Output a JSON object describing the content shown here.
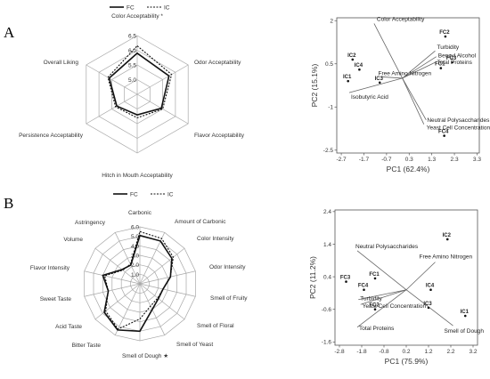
{
  "panels": [
    {
      "letter": "A",
      "radar": {
        "type": "radar",
        "legend": [
          "FC",
          "IC"
        ],
        "axes": [
          "Color Acceptability *",
          "Odor Acceptability",
          "Flavor Acceptability",
          "Hitch in Mouth Acceptability",
          "Persistence Acceptability",
          "Overall Liking"
        ],
        "rings": [
          5.0,
          5.5,
          6.0,
          6.5
        ],
        "rmin": 4.5,
        "rmax": 6.5,
        "series": [
          {
            "name": "FC",
            "values": [
              5.9,
              5.75,
              5.45,
              5.2,
              5.3,
              5.6
            ]
          },
          {
            "name": "IC",
            "values": [
              6.15,
              5.85,
              5.5,
              5.3,
              5.35,
              5.65
            ]
          }
        ]
      },
      "pca": {
        "type": "biplot",
        "xlabel": "PC1 (62.4%)",
        "ylabel": "PC2 (15.1%)",
        "xticks": [
          "-2.7",
          "-1.7",
          "-0.7",
          "0.3",
          "1.3",
          "2.3",
          "3.3"
        ],
        "yticks": [
          "2",
          "0.5",
          "-1",
          "-2.5"
        ],
        "xlim": [
          -2.9,
          3.4
        ],
        "ylim": [
          -2.6,
          2.1
        ],
        "origin": [
          0.0,
          0.0
        ],
        "points": [
          {
            "label": "FC2",
            "x": 1.9,
            "y": 1.45
          },
          {
            "label": "FC3",
            "x": 2.2,
            "y": 0.55
          },
          {
            "label": "FC1",
            "x": 1.7,
            "y": 0.35
          },
          {
            "label": "FC4",
            "x": 1.85,
            "y": -2.0
          },
          {
            "label": "IC2",
            "x": -2.2,
            "y": 0.65
          },
          {
            "label": "IC4",
            "x": -1.9,
            "y": 0.3
          },
          {
            "label": "IC1",
            "x": -2.4,
            "y": -0.1
          },
          {
            "label": "IC3",
            "x": -1.0,
            "y": -0.15
          }
        ],
        "vectors": [
          {
            "label": "Color Acceptability",
            "x": -1.25,
            "y": 1.9
          },
          {
            "label": "Turbidity",
            "x": 1.45,
            "y": 0.95
          },
          {
            "label": "Benzyl Alcohol",
            "x": 1.5,
            "y": 0.75
          },
          {
            "label": "Total Proteins",
            "x": 1.45,
            "y": 0.55
          },
          {
            "label": "Free Amino Nitrogen",
            "x": -0.95,
            "y": 0.05
          },
          {
            "label": "Isobutyric Acid",
            "x": -2.35,
            "y": -0.5
          },
          {
            "label": "Neutral Polysaccharides",
            "x": 1.05,
            "y": -1.45
          },
          {
            "label": "Yeast Cell Concentration",
            "x": 0.95,
            "y": -1.6
          }
        ]
      }
    },
    {
      "letter": "B",
      "radar": {
        "type": "radar",
        "legend": [
          "FC",
          "IC"
        ],
        "axes": [
          "Carbonic",
          "Amount of Carbonic",
          "Color Intensity",
          "Odor Intensity",
          "Smell of Fruity",
          "Smell of Floral",
          "Smell of Yeast",
          "Smell of Dough ★",
          "Bitter Taste",
          "Acid Taste",
          "Sweet Taste",
          "Flavor Intensity",
          "Volume",
          "Astringency"
        ],
        "rings": [
          1.0,
          2.0,
          3.0,
          4.0,
          5.0,
          6.0
        ],
        "rmin": 0,
        "rmax": 6.0,
        "series": [
          {
            "name": "FC",
            "values": [
              5.1,
              5.0,
              4.3,
              3.3,
              2.5,
              2.5,
              3.0,
              5.0,
              5.4,
              4.8,
              3.4,
              4.0,
              2.4,
              2.2
            ]
          },
          {
            "name": "IC",
            "values": [
              5.5,
              5.3,
              4.5,
              3.3,
              2.5,
              2.4,
              2.6,
              3.7,
              5.3,
              4.6,
              3.4,
              3.8,
              2.3,
              2.3
            ]
          }
        ]
      },
      "pca": {
        "type": "biplot",
        "xlabel": "PC1 (75.9%)",
        "ylabel": "PC2 (11.2%)",
        "xticks": [
          "-2.8",
          "-1.8",
          "-0.8",
          "0.2",
          "1.2",
          "2.2",
          "3.2"
        ],
        "yticks": [
          "2.4",
          "1.4",
          "0.4",
          "-0.6",
          "-1.6"
        ],
        "xlim": [
          -3.0,
          3.4
        ],
        "ylim": [
          -1.7,
          2.45
        ],
        "origin": [
          0.2,
          0.0
        ],
        "points": [
          {
            "label": "IC2",
            "x": 2.05,
            "y": 1.55
          },
          {
            "label": "IC4",
            "x": 1.3,
            "y": 0.0
          },
          {
            "label": "IC3",
            "x": 1.2,
            "y": -0.55
          },
          {
            "label": "IC1",
            "x": 2.85,
            "y": -0.8
          },
          {
            "label": "FC3",
            "x": -2.5,
            "y": 0.25
          },
          {
            "label": "FC1",
            "x": -1.2,
            "y": 0.35
          },
          {
            "label": "FC4",
            "x": -1.7,
            "y": 0.0
          },
          {
            "label": "FC2",
            "x": -1.2,
            "y": -0.6
          }
        ],
        "vectors": [
          {
            "label": "Neutral Polysaccharides",
            "x": -2.0,
            "y": 1.2
          },
          {
            "label": "Free Amino Nitrogen",
            "x": 1.5,
            "y": 0.85
          },
          {
            "label": "Turbidity",
            "x": -1.95,
            "y": -0.3
          },
          {
            "label": "Yeast Cell Concentration",
            "x": -1.85,
            "y": -0.45
          },
          {
            "label": "Total Proteins",
            "x": -2.0,
            "y": -1.15
          },
          {
            "label": "Smell of Dough",
            "x": 2.3,
            "y": -1.1
          }
        ]
      }
    }
  ]
}
